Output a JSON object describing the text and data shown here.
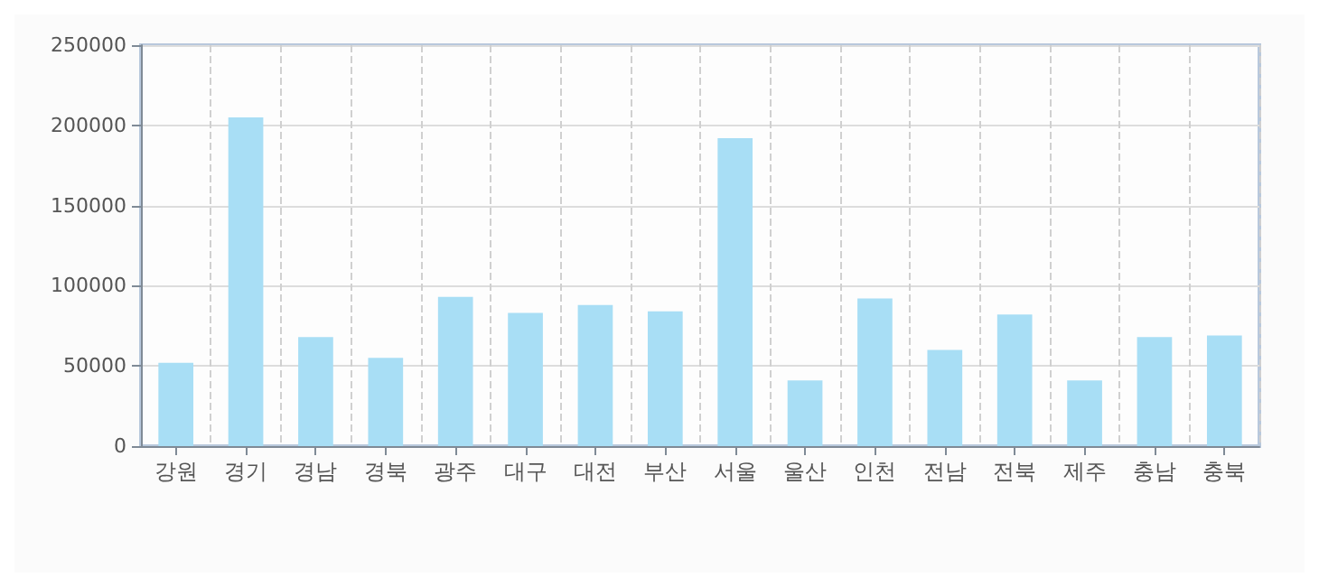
{
  "chart_data": {
    "type": "bar",
    "categories": [
      "강원",
      "경기",
      "경남",
      "경북",
      "광주",
      "대구",
      "대전",
      "부산",
      "서울",
      "울산",
      "인천",
      "전남",
      "전북",
      "제주",
      "충남",
      "충북"
    ],
    "series": [
      {
        "color": "#a8def5",
        "values": [
          52000,
          205000,
          68000,
          55000,
          93000,
          83000,
          88000,
          84000,
          192000,
          41000,
          92000,
          60000,
          82000,
          41000,
          68000,
          69000
        ]
      }
    ],
    "ylim": [
      0,
      250000
    ],
    "yticks": [
      0,
      50000,
      100000,
      150000,
      200000,
      250000
    ],
    "grid": true
  }
}
